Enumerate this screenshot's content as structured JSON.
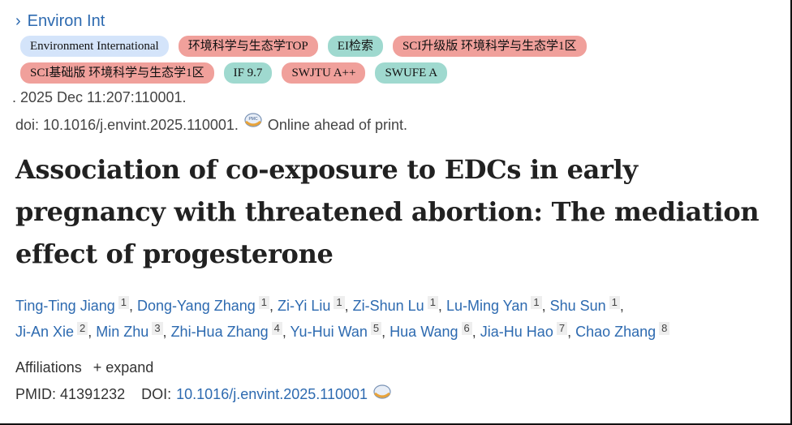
{
  "journal": {
    "label": "Environ Int",
    "icon": "chevron-right-icon"
  },
  "badges": [
    {
      "label": "Environment International",
      "color": "#d4e4fa"
    },
    {
      "label": "环境科学与生态学TOP",
      "color": "#f0a09b"
    },
    {
      "label": "EI检索",
      "color": "#9fd9cf"
    },
    {
      "label": "SCI升级版 环境科学与生态学1区",
      "color": "#f0a09b"
    },
    {
      "label": "SCI基础版 环境科学与生态学1区",
      "color": "#f0a09b"
    },
    {
      "label": "IF 9.7",
      "color": "#9fd9cf"
    },
    {
      "label": "SWJTU A++",
      "color": "#f0a09b"
    },
    {
      "label": "SWUFE A",
      "color": "#9fd9cf"
    }
  ],
  "citation": ". 2025 Dec 11:207:110001.",
  "doi_line": {
    "doi": "doi: 10.1016/j.envint.2025.110001.",
    "status": "Online ahead of print."
  },
  "title": "Association of co-exposure to EDCs in early pregnancy with threatened abortion: The mediation effect of progesterone",
  "authors": [
    {
      "name": "Ting-Ting Jiang",
      "aff": "1"
    },
    {
      "name": "Dong-Yang Zhang",
      "aff": "1"
    },
    {
      "name": "Zi-Yi Liu",
      "aff": "1"
    },
    {
      "name": "Zi-Shun Lu",
      "aff": "1"
    },
    {
      "name": "Lu-Ming Yan",
      "aff": "1"
    },
    {
      "name": "Shu Sun",
      "aff": "1"
    },
    {
      "name": "Ji-An Xie",
      "aff": "2"
    },
    {
      "name": "Min Zhu",
      "aff": "3"
    },
    {
      "name": "Zhi-Hua Zhang",
      "aff": "4"
    },
    {
      "name": "Yu-Hui Wan",
      "aff": "5"
    },
    {
      "name": "Hua Wang",
      "aff": "6"
    },
    {
      "name": "Jia-Hu Hao",
      "aff": "7"
    },
    {
      "name": "Chao Zhang",
      "aff": "8"
    }
  ],
  "affiliations": {
    "label": "Affiliations",
    "expand": "+ expand"
  },
  "ids": {
    "pmid_label": "PMID:",
    "pmid": "41391232",
    "doi_label": "DOI:",
    "doi": "10.1016/j.envint.2025.110001"
  }
}
